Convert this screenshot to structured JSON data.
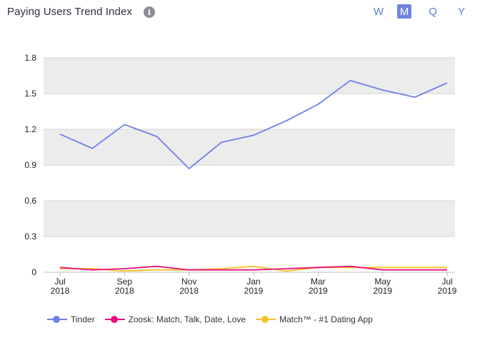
{
  "header": {
    "title": "Paying Users Trend Index",
    "info_icon": "info-icon",
    "periods": [
      "W",
      "M",
      "Q",
      "Y"
    ],
    "active_period": "M"
  },
  "chart_data": {
    "type": "line",
    "title": "Paying Users Trend Index",
    "xlabel": "",
    "ylabel": "",
    "ylim": [
      0,
      1.8
    ],
    "yticks": [
      "0",
      "0.3",
      "0.6",
      "0.9",
      "1.2",
      "1.5",
      "1.8"
    ],
    "x": [
      "2018-07",
      "2018-08",
      "2018-09",
      "2018-10",
      "2018-11",
      "2018-12",
      "2019-01",
      "2019-02",
      "2019-03",
      "2019-04",
      "2019-05",
      "2019-06",
      "2019-07"
    ],
    "xtick_labels": [
      {
        "month": "Jul",
        "year": "2018"
      },
      {
        "month": "Sep",
        "year": "2018"
      },
      {
        "month": "Nov",
        "year": "2018"
      },
      {
        "month": "Jan",
        "year": "2019"
      },
      {
        "month": "Mar",
        "year": "2019"
      },
      {
        "month": "May",
        "year": "2019"
      },
      {
        "month": "Jul",
        "year": "2019"
      }
    ],
    "grid": true,
    "legend_position": "bottom",
    "series": [
      {
        "name": "Tinder",
        "color": "#6f7fe8",
        "values": [
          1.16,
          1.04,
          1.24,
          1.14,
          0.87,
          1.09,
          1.15,
          1.27,
          1.41,
          1.61,
          1.53,
          1.47,
          1.59
        ]
      },
      {
        "name": "Zoosk: Match, Talk, Date, Love",
        "color": "#e8107a",
        "values": [
          0.04,
          0.02,
          0.03,
          0.05,
          0.02,
          0.02,
          0.02,
          0.03,
          0.04,
          0.05,
          0.02,
          0.02,
          0.02
        ]
      },
      {
        "name": "Match™ - #1 Dating App",
        "color": "#f7c12c",
        "values": [
          0.03,
          0.03,
          0.01,
          0.02,
          0.02,
          0.03,
          0.05,
          0.01,
          0.04,
          0.04,
          0.04,
          0.04,
          0.04
        ]
      }
    ]
  }
}
